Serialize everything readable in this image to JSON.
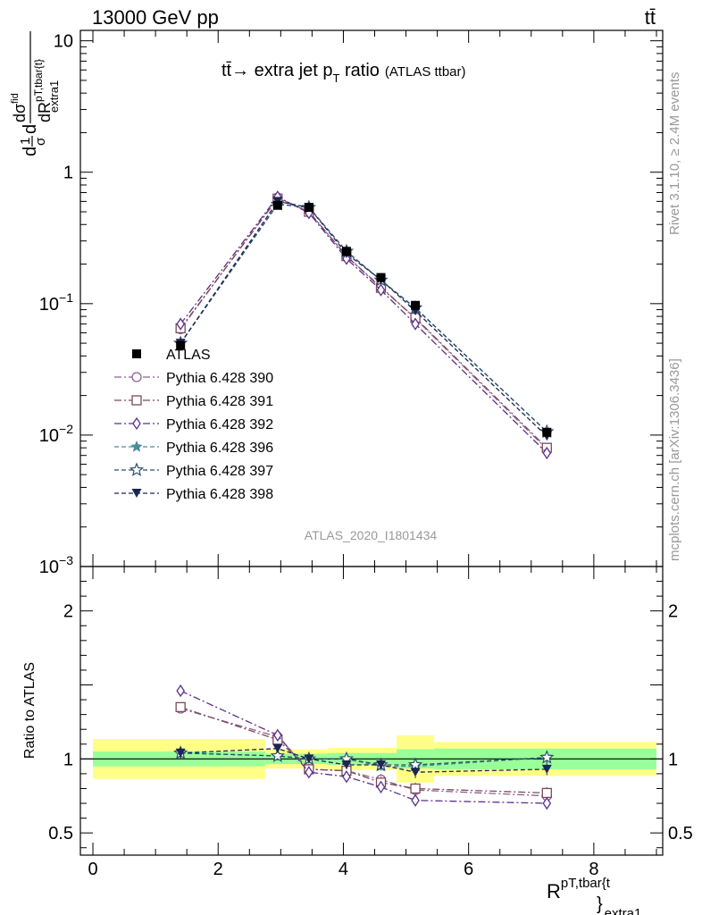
{
  "header": {
    "left": "13000 GeV pp",
    "right": "tt̄"
  },
  "side_labels": {
    "rivet": "Rivet 3.1.10, ≥ 2.4M events",
    "mcplots": "mcplots.cern.ch [arXiv:1306.3436]"
  },
  "watermark": "ATLAS_2020_I1801434",
  "chart_data": [
    {
      "type": "line",
      "title": "tt̄ → extra jet pT ratio (ATLAS ttbar)",
      "title_parts": {
        "main": "tt̄→ extra jet p",
        "sub": "T",
        "rest": " ratio",
        "small": "(ATLAS ttbar)"
      },
      "ylabel": "1/σ dσ/dR",
      "ylabel_parts": {
        "top_left": "d",
        "one": "1",
        "sigma": "σ",
        "d_sigma": "dσ",
        "fid": "fid",
        "d": "d",
        "R": "R",
        "sup": "pT,tbar{t}",
        "sub": "extra1"
      },
      "yscale": "log",
      "xlim": [
        -0.2,
        9.1
      ],
      "ylim": [
        0.001,
        12
      ],
      "y_ticks": [
        {
          "value": 10,
          "label": "10"
        },
        {
          "value": 1,
          "label": "1"
        },
        {
          "value": 0.1,
          "label": "10",
          "exp": "−1"
        },
        {
          "value": 0.01,
          "label": "10",
          "exp": "−2"
        },
        {
          "value": 0.001,
          "label": "10",
          "exp": "−3"
        }
      ],
      "x": [
        1.4,
        2.95,
        3.45,
        4.05,
        4.6,
        5.15,
        7.25
      ],
      "data_series": {
        "name": "ATLAS",
        "values": [
          0.048,
          0.56,
          0.54,
          0.25,
          0.158,
          0.097,
          0.0105
        ]
      },
      "series": [
        {
          "name": "Pythia 6.428 390",
          "color": "#8e5e93",
          "marker": "circle-open",
          "dash": "8,3,2,3",
          "values": [
            0.064,
            0.64,
            0.5,
            0.23,
            0.134,
            0.077,
            0.0078
          ]
        },
        {
          "name": "Pythia 6.428 391",
          "color": "#7c4a58",
          "marker": "square-open",
          "dash": "8,3,2,3",
          "values": [
            0.065,
            0.63,
            0.5,
            0.23,
            0.132,
            0.078,
            0.008
          ]
        },
        {
          "name": "Pythia 6.428 392",
          "color": "#5b2f8c",
          "marker": "diamond-open",
          "dash": "8,3,2,3",
          "values": [
            0.07,
            0.65,
            0.49,
            0.22,
            0.127,
            0.07,
            0.0073
          ]
        },
        {
          "name": "Pythia 6.428 396",
          "color": "#4d8a9a",
          "marker": "star-filled",
          "dash": "5,3",
          "values": [
            0.05,
            0.57,
            0.54,
            0.25,
            0.15,
            0.092,
            0.0106
          ]
        },
        {
          "name": "Pythia 6.428 397",
          "color": "#2e4d6b",
          "marker": "star-open",
          "dash": "5,3",
          "values": [
            0.05,
            0.57,
            0.54,
            0.25,
            0.151,
            0.093,
            0.0106
          ]
        },
        {
          "name": "Pythia 6.428 398",
          "color": "#1c2653",
          "marker": "triangle-down-filled",
          "dash": "5,3",
          "values": [
            0.05,
            0.6,
            0.54,
            0.24,
            0.152,
            0.088,
            0.0098
          ]
        }
      ]
    },
    {
      "type": "line",
      "ylabel": "Ratio to ATLAS",
      "xlabel": "R pT,tbar{t} extra1",
      "xlabel_parts": {
        "R": "R",
        "sup": "pT,tbar{t",
        "brace": "}",
        "sub": "extra1"
      },
      "xlim": [
        -0.2,
        9.1
      ],
      "ylim": [
        0.35,
        2.3
      ],
      "x_ticks": [
        {
          "value": 0,
          "label": "0"
        },
        {
          "value": 2,
          "label": "2"
        },
        {
          "value": 4,
          "label": "4"
        },
        {
          "value": 6,
          "label": "6"
        },
        {
          "value": 8,
          "label": "8"
        }
      ],
      "y_ticks": [
        {
          "value": 2,
          "label": "2"
        },
        {
          "value": 1,
          "label": "1"
        },
        {
          "value": 0.5,
          "label": "0.5"
        }
      ],
      "bins": [
        {
          "lo": 0.0,
          "hi": 2.75,
          "stat": 0.05,
          "total": 0.135
        },
        {
          "lo": 2.75,
          "hi": 3.75,
          "stat": 0.035,
          "total": 0.065
        },
        {
          "lo": 3.75,
          "hi": 4.85,
          "stat": 0.04,
          "total": 0.075
        },
        {
          "lo": 4.85,
          "hi": 5.45,
          "stat": 0.065,
          "total": 0.16
        },
        {
          "lo": 5.45,
          "hi": 9.0,
          "stat": 0.07,
          "total": 0.115
        }
      ],
      "x": [
        1.4,
        2.95,
        3.45,
        4.05,
        4.6,
        5.15,
        7.25
      ],
      "series": [
        {
          "name": "Pythia 6.428 390",
          "values": [
            1.34,
            1.15,
            0.93,
            0.92,
            0.86,
            0.79,
            0.75
          ],
          "err": [
            0.03,
            0.02,
            0.02,
            0.03,
            0.04,
            0.04,
            0.04
          ]
        },
        {
          "name": "Pythia 6.428 391",
          "values": [
            1.35,
            1.13,
            0.93,
            0.92,
            0.84,
            0.8,
            0.77
          ],
          "err": [
            0.03,
            0.02,
            0.02,
            0.03,
            0.04,
            0.04,
            0.04
          ]
        },
        {
          "name": "Pythia 6.428 392",
          "values": [
            1.46,
            1.16,
            0.91,
            0.88,
            0.81,
            0.72,
            0.7
          ],
          "err": [
            0.03,
            0.02,
            0.02,
            0.03,
            0.04,
            0.04,
            0.04
          ]
        },
        {
          "name": "Pythia 6.428 396",
          "values": [
            1.04,
            1.02,
            1.0,
            1.0,
            0.95,
            0.95,
            1.01
          ],
          "err": [
            0.04,
            0.03,
            0.02,
            0.03,
            0.03,
            0.04,
            0.04
          ]
        },
        {
          "name": "Pythia 6.428 397",
          "values": [
            1.04,
            1.02,
            1.0,
            1.0,
            0.96,
            0.96,
            1.01
          ],
          "err": [
            0.04,
            0.03,
            0.02,
            0.03,
            0.03,
            0.04,
            0.04
          ]
        },
        {
          "name": "Pythia 6.428 398",
          "values": [
            1.04,
            1.07,
            1.0,
            0.96,
            0.96,
            0.91,
            0.93
          ],
          "err": [
            0.04,
            0.03,
            0.02,
            0.03,
            0.03,
            0.04,
            0.04
          ]
        }
      ]
    }
  ]
}
